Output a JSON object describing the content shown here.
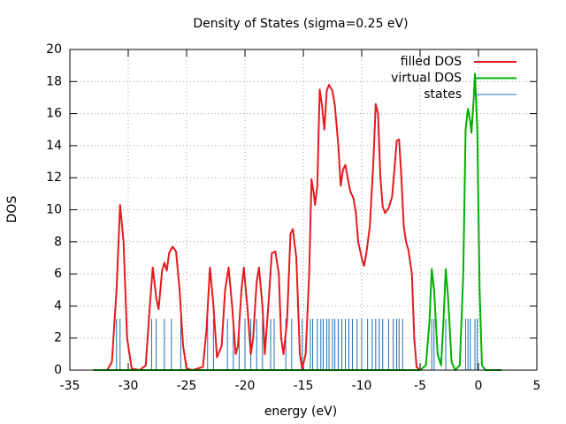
{
  "chart_data": {
    "type": "line",
    "title": "Density of States (sigma=0.25 eV)",
    "x_label": "energy (eV)",
    "y_label": "DOS",
    "xlim": [
      -35,
      5
    ],
    "xticks": [
      -35,
      -30,
      -25,
      -20,
      -15,
      -10,
      -5,
      0,
      5
    ],
    "ylim": [
      0,
      20
    ],
    "yticks": [
      0,
      2,
      4,
      6,
      8,
      10,
      12,
      14,
      16,
      18,
      20
    ],
    "grid": true,
    "legend": "top-right",
    "series": [
      {
        "name": "filled DOS",
        "color": "#e41a1c",
        "style": "lines",
        "x": [
          -33,
          -31.8,
          -31.4,
          -31,
          -30.7,
          -30.4,
          -30.1,
          -29.7,
          -29,
          -28.5,
          -28.2,
          -27.9,
          -27.6,
          -27.4,
          -27.1,
          -26.9,
          -26.7,
          -26.5,
          -26.2,
          -25.9,
          -25.6,
          -25.3,
          -25,
          -24.5,
          -23.6,
          -23.3,
          -23,
          -22.7,
          -22.4,
          -22,
          -21.7,
          -21.4,
          -21.1,
          -20.8,
          -20.6,
          -20.3,
          -20.1,
          -19.8,
          -19.5,
          -19.3,
          -19,
          -18.8,
          -18.5,
          -18.3,
          -18,
          -17.7,
          -17.4,
          -17.1,
          -16.9,
          -16.7,
          -16.4,
          -16.1,
          -15.9,
          -15.6,
          -15.3,
          -15.1,
          -14.8,
          -14.5,
          -14.3,
          -14.1,
          -14,
          -13.8,
          -13.6,
          -13.4,
          -13.2,
          -13,
          -12.8,
          -12.5,
          -12.3,
          -12,
          -11.8,
          -11.6,
          -11.4,
          -11.2,
          -11,
          -10.7,
          -10.5,
          -10.3,
          -10,
          -9.8,
          -9.6,
          -9.3,
          -9,
          -8.8,
          -8.6,
          -8.4,
          -8.2,
          -8,
          -7.7,
          -7.4,
          -7.2,
          -7,
          -6.8,
          -6.6,
          -6.4,
          -6.2,
          -6,
          -5.7,
          -5.5,
          -5.3,
          -5
        ],
        "values": [
          0,
          0,
          0.5,
          5,
          10.3,
          8,
          2,
          0.1,
          0,
          0.3,
          3.5,
          6.4,
          4.5,
          3.8,
          6.2,
          6.7,
          6.2,
          7.3,
          7.7,
          7.4,
          5,
          1.5,
          0.1,
          0,
          0.2,
          2.5,
          6.4,
          4,
          0.8,
          1.5,
          5,
          6.4,
          4,
          1,
          1.5,
          5,
          6.4,
          4,
          1,
          2,
          5.5,
          6.4,
          4,
          1,
          4,
          7.3,
          7.4,
          6,
          2,
          1,
          3,
          8.5,
          8.8,
          7,
          1,
          0.1,
          1,
          6,
          11.9,
          11,
          10.3,
          11.5,
          17.5,
          16.5,
          15,
          17.4,
          17.8,
          17.4,
          16.5,
          14,
          11.5,
          12.5,
          12.8,
          12,
          11.2,
          10.7,
          9.8,
          8,
          7,
          6.5,
          7.3,
          9,
          13,
          16.6,
          16,
          12,
          10.2,
          9.8,
          10.1,
          10.8,
          12.5,
          14.3,
          14.4,
          12,
          9,
          8,
          7.5,
          6,
          2,
          0.2,
          0
        ]
      },
      {
        "name": "virtual DOS",
        "color": "#00b000",
        "style": "lines",
        "x": [
          -33,
          -5,
          -4.5,
          -4.2,
          -4,
          -3.8,
          -3.5,
          -3.2,
          -3,
          -2.8,
          -2.6,
          -2.3,
          -2,
          -1.6,
          -1.3,
          -1.1,
          -0.9,
          -0.7,
          -0.6,
          -0.4,
          -0.3,
          -0.1,
          0.1,
          0.3,
          0.6,
          2
        ],
        "values": [
          0,
          0,
          0.3,
          3,
          6.3,
          5,
          1,
          0.3,
          3,
          6.3,
          4.5,
          0.5,
          0,
          0.3,
          6,
          15,
          16.3,
          15.5,
          14.8,
          17,
          18.5,
          15,
          5,
          0.3,
          0,
          0
        ]
      },
      {
        "name": "states",
        "color": "#1f6fb4",
        "style": "impulses",
        "x": [
          -31,
          -30.7,
          -28,
          -27.6,
          -26.9,
          -26.3,
          -25.5,
          -23.2,
          -22.7,
          -21.5,
          -21,
          -20.5,
          -20,
          -19.5,
          -19,
          -18.5,
          -17.8,
          -17.5,
          -16.5,
          -16,
          -15.1,
          -14.4,
          -14.2,
          -13.8,
          -13.5,
          -13.3,
          -13,
          -12.8,
          -12.5,
          -12.3,
          -12,
          -11.7,
          -11.4,
          -11.1,
          -10.8,
          -10.4,
          -10,
          -9.5,
          -9.1,
          -8.8,
          -8.5,
          -8.2,
          -7.7,
          -7.3,
          -7,
          -6.8,
          -6.5,
          -4,
          -3.8,
          -2.8,
          -1.1,
          -0.9,
          -0.7,
          -0.3,
          -0.1
        ],
        "values": [
          3.2,
          3.2,
          3.2,
          3.2,
          3.2,
          3.2,
          3.2,
          3.2,
          3.2,
          3.2,
          3.2,
          3.2,
          3.2,
          3.2,
          3.2,
          3.2,
          3.2,
          3.2,
          3.2,
          3.2,
          3.2,
          3.2,
          3.2,
          3.2,
          3.2,
          3.2,
          3.2,
          3.2,
          3.2,
          3.2,
          3.2,
          3.2,
          3.2,
          3.2,
          3.2,
          3.2,
          3.2,
          3.2,
          3.2,
          3.2,
          3.2,
          3.2,
          3.2,
          3.2,
          3.2,
          3.2,
          3.2,
          3.2,
          3.2,
          3.2,
          3.2,
          3.2,
          3.2,
          3.2,
          3.2
        ]
      }
    ]
  }
}
